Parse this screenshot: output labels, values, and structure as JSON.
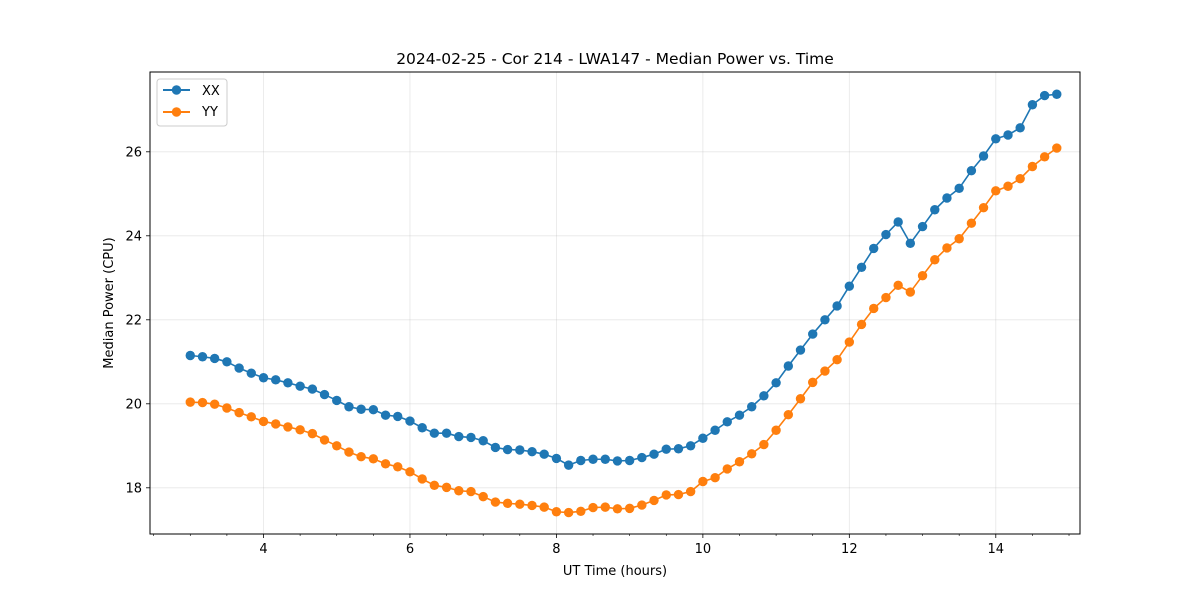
{
  "chart_data": {
    "type": "line",
    "title": "2024-02-25 - Cor 214 - LWA147 - Median Power vs. Time",
    "xlabel": "UT Time (hours)",
    "ylabel": "Median Power (CPU)",
    "xlim": [
      2.45,
      15.15
    ],
    "ylim": [
      16.9,
      27.9
    ],
    "xticks": [
      4,
      6,
      8,
      10,
      12,
      14
    ],
    "yticks": [
      18,
      20,
      22,
      24,
      26
    ],
    "grid": true,
    "legend_position": "top-left",
    "x": [
      3.0,
      3.167,
      3.333,
      3.5,
      3.667,
      3.833,
      4.0,
      4.167,
      4.333,
      4.5,
      4.667,
      4.833,
      5.0,
      5.167,
      5.333,
      5.5,
      5.667,
      5.833,
      6.0,
      6.167,
      6.333,
      6.5,
      6.667,
      6.833,
      7.0,
      7.167,
      7.333,
      7.5,
      7.667,
      7.833,
      8.0,
      8.167,
      8.333,
      8.5,
      8.667,
      8.833,
      9.0,
      9.167,
      9.333,
      9.5,
      9.667,
      9.833,
      10.0,
      10.167,
      10.333,
      10.5,
      10.667,
      10.833,
      11.0,
      11.167,
      11.333,
      11.5,
      11.667,
      11.833,
      12.0,
      12.167,
      12.333,
      12.5,
      12.667,
      12.833,
      13.0,
      13.167,
      13.333,
      13.5,
      13.667,
      13.833,
      14.0,
      14.167,
      14.333,
      14.5,
      14.667,
      14.833
    ],
    "series": [
      {
        "name": "XX",
        "color": "#1f77b4",
        "values": [
          21.15,
          21.12,
          21.08,
          21.0,
          20.85,
          20.73,
          20.62,
          20.57,
          20.5,
          20.42,
          20.35,
          20.22,
          20.08,
          19.93,
          19.87,
          19.86,
          19.73,
          19.7,
          19.59,
          19.43,
          19.3,
          19.3,
          19.22,
          19.2,
          19.12,
          18.96,
          18.91,
          18.9,
          18.86,
          18.8,
          18.7,
          18.54,
          18.65,
          18.68,
          18.68,
          18.64,
          18.65,
          18.72,
          18.8,
          18.92,
          18.93,
          19.0,
          19.18,
          19.37,
          19.57,
          19.73,
          19.93,
          20.19,
          20.5,
          20.9,
          21.28,
          21.66,
          22.0,
          22.33,
          22.8,
          23.25,
          23.7,
          24.03,
          24.33,
          23.82,
          24.22,
          24.62,
          24.9,
          25.13,
          25.55,
          25.9,
          26.31,
          26.4,
          26.57,
          27.12,
          27.34,
          27.37
        ]
      },
      {
        "name": "YY",
        "color": "#ff7f0e",
        "values": [
          20.04,
          20.03,
          19.99,
          19.9,
          19.79,
          19.69,
          19.58,
          19.52,
          19.45,
          19.38,
          19.29,
          19.14,
          19.0,
          18.85,
          18.74,
          18.69,
          18.57,
          18.5,
          18.38,
          18.21,
          18.06,
          18.01,
          17.93,
          17.91,
          17.79,
          17.66,
          17.63,
          17.61,
          17.58,
          17.54,
          17.43,
          17.41,
          17.44,
          17.53,
          17.54,
          17.5,
          17.51,
          17.59,
          17.7,
          17.83,
          17.84,
          17.91,
          18.15,
          18.24,
          18.45,
          18.62,
          18.81,
          19.03,
          19.37,
          19.74,
          20.12,
          20.51,
          20.78,
          21.05,
          21.47,
          21.89,
          22.27,
          22.53,
          22.82,
          22.66,
          23.05,
          23.43,
          23.71,
          23.93,
          24.3,
          24.67,
          25.07,
          25.18,
          25.36,
          25.65,
          25.88,
          26.09
        ]
      }
    ]
  }
}
